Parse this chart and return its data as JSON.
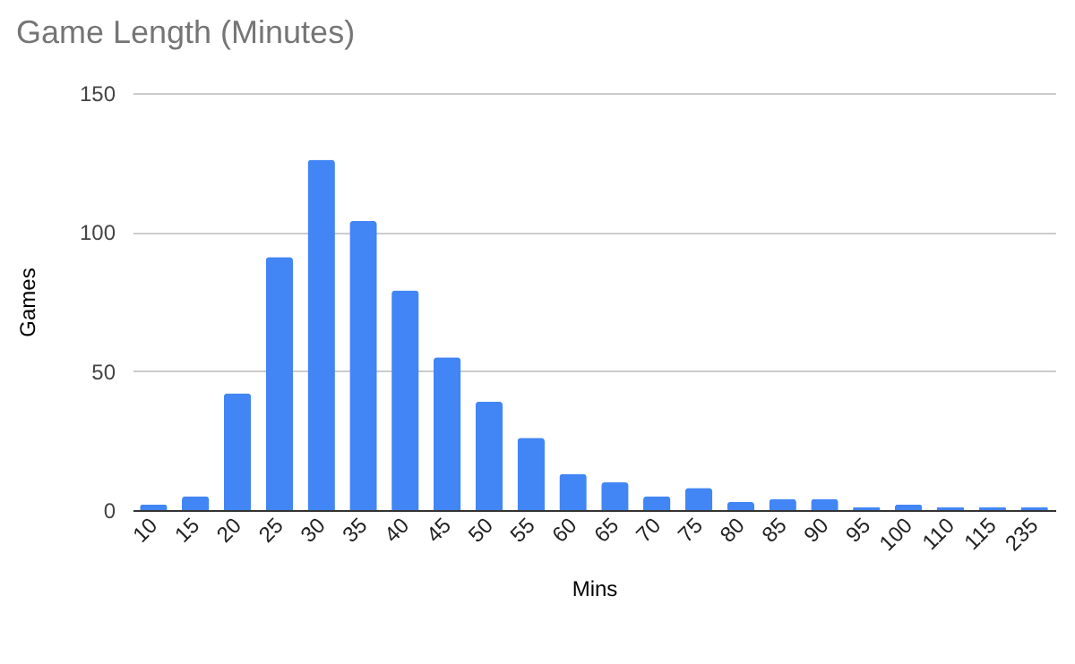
{
  "chart_data": {
    "type": "bar",
    "title": "Game Length (Minutes)",
    "xlabel": "Mins",
    "ylabel": "Games",
    "categories": [
      "10",
      "15",
      "20",
      "25",
      "30",
      "35",
      "40",
      "45",
      "50",
      "55",
      "60",
      "65",
      "70",
      "75",
      "80",
      "85",
      "90",
      "95",
      "100",
      "110",
      "115",
      "235"
    ],
    "values": [
      2,
      5,
      42,
      91,
      126,
      104,
      79,
      55,
      39,
      26,
      13,
      10,
      5,
      8,
      3,
      4,
      4,
      1,
      2,
      1,
      1,
      1
    ],
    "color": "#4285f4",
    "ylim": [
      0,
      150
    ],
    "yticks": [
      0,
      50,
      100,
      150
    ],
    "grid": "y"
  }
}
